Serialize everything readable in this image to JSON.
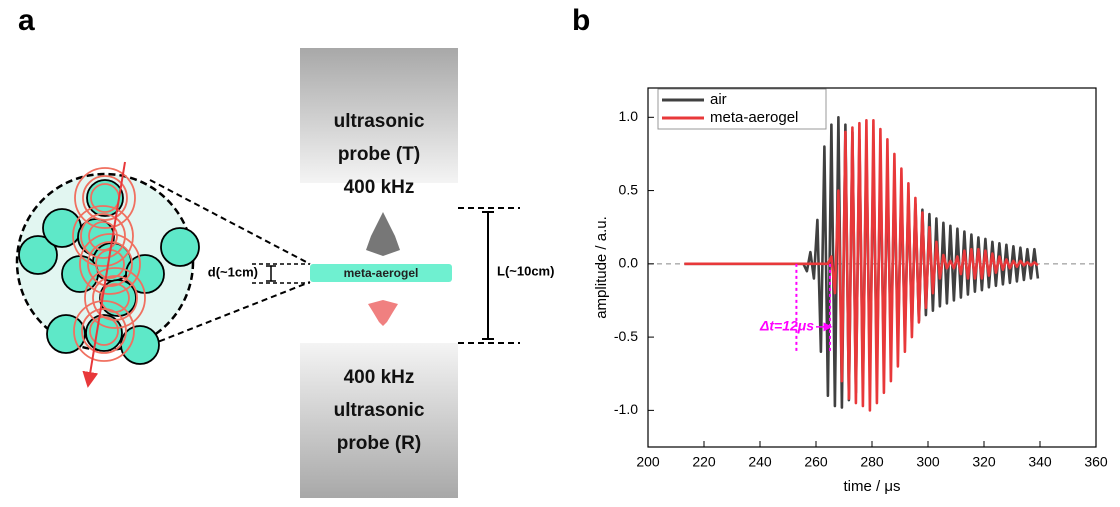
{
  "panels": {
    "a": "a",
    "b": "b"
  },
  "diagram": {
    "probe_top": [
      "ultrasonic",
      "probe (T)",
      "400 kHz"
    ],
    "probe_bottom": [
      "400 kHz",
      "ultrasonic",
      "probe (R)"
    ],
    "sample": "meta-aerogel",
    "thickness": "d(~1cm)",
    "distance": "L(~10cm)"
  },
  "chart_data": {
    "type": "line",
    "xlabel": "time / μs",
    "ylabel": "amplitude / a.u.",
    "xlim": [
      200,
      360
    ],
    "xticks": [
      200,
      220,
      240,
      260,
      280,
      300,
      320,
      340,
      360
    ],
    "ylim": [
      -1.25,
      1.2
    ],
    "yticks": [
      {
        "value": -1,
        "label": "-1.0"
      },
      {
        "value": -0.5,
        "label": "-0.5"
      },
      {
        "value": 0,
        "label": "0.0"
      },
      {
        "value": 0.5,
        "label": "0.5"
      },
      {
        "value": 1,
        "label": "1.0"
      }
    ],
    "hline": 0,
    "legend": "upper left",
    "annotation": {
      "text": "Δt=12μs",
      "x_start": 253,
      "x_end": 265
    },
    "x": [
      213,
      253,
      254.25,
      255.5,
      256.75,
      258,
      259.25,
      260.5,
      261.75,
      263,
      264.25,
      265.5,
      266.75,
      268,
      269.25,
      270.5,
      271.75,
      273,
      274.25,
      275.5,
      276.75,
      278,
      279.25,
      280.5,
      281.75,
      283,
      284.25,
      285.5,
      286.75,
      288,
      289.25,
      290.5,
      291.75,
      293,
      294.25,
      295.5,
      296.75,
      298,
      299.25,
      300.5,
      301.75,
      303,
      304.25,
      305.5,
      306.75,
      308,
      309.25,
      310.5,
      311.75,
      313,
      314.25,
      315.5,
      316.75,
      318,
      319.25,
      320.5,
      321.75,
      323,
      324.25,
      325.5,
      326.75,
      328,
      329.25,
      330.5,
      331.75,
      333,
      334.25,
      335.5,
      336.75,
      338,
      339.25
    ],
    "series": [
      {
        "name": "air",
        "color": "#404040",
        "values": [
          0,
          0,
          0,
          0,
          -0.05,
          0.08,
          -0.1,
          0.3,
          -0.6,
          0.8,
          -0.9,
          0.95,
          -0.97,
          1.0,
          -0.98,
          0.95,
          -0.93,
          0.9,
          -0.88,
          0.85,
          -0.82,
          0.78,
          -0.75,
          0.72,
          -0.7,
          0.67,
          -0.64,
          0.61,
          -0.58,
          0.55,
          -0.52,
          0.5,
          -0.47,
          0.45,
          -0.43,
          0.41,
          -0.39,
          0.37,
          -0.35,
          0.34,
          -0.32,
          0.31,
          -0.29,
          0.28,
          -0.27,
          0.26,
          -0.25,
          0.24,
          -0.23,
          0.22,
          -0.21,
          0.2,
          -0.19,
          0.18,
          -0.18,
          0.17,
          -0.16,
          0.15,
          -0.15,
          0.14,
          -0.14,
          0.13,
          -0.13,
          0.12,
          -0.12,
          0.11,
          -0.11,
          0.1,
          -0.1,
          0.1,
          -0.1
        ]
      },
      {
        "name": "meta-aerogel",
        "color": "#e8383a",
        "values": [
          0,
          0,
          0,
          0,
          0,
          0,
          0,
          0,
          0,
          0,
          0,
          0.05,
          -0.2,
          0.5,
          -0.8,
          0.9,
          -0.92,
          0.93,
          -0.95,
          0.96,
          -0.97,
          0.98,
          -1.0,
          0.98,
          -0.95,
          0.92,
          -0.88,
          0.85,
          -0.8,
          0.75,
          -0.7,
          0.65,
          -0.6,
          0.55,
          -0.5,
          0.45,
          -0.4,
          0.35,
          -0.3,
          0.25,
          -0.2,
          0.15,
          -0.1,
          0.06,
          -0.03,
          0.02,
          -0.03,
          0.05,
          -0.07,
          0.09,
          -0.1,
          0.1,
          -0.1,
          0.1,
          -0.1,
          0.09,
          -0.08,
          0.07,
          -0.06,
          0.05,
          -0.04,
          0.03,
          -0.03,
          0.02,
          -0.02,
          0.02,
          -0.01,
          0.01,
          -0.01,
          0.01,
          -0.01
        ]
      }
    ]
  }
}
